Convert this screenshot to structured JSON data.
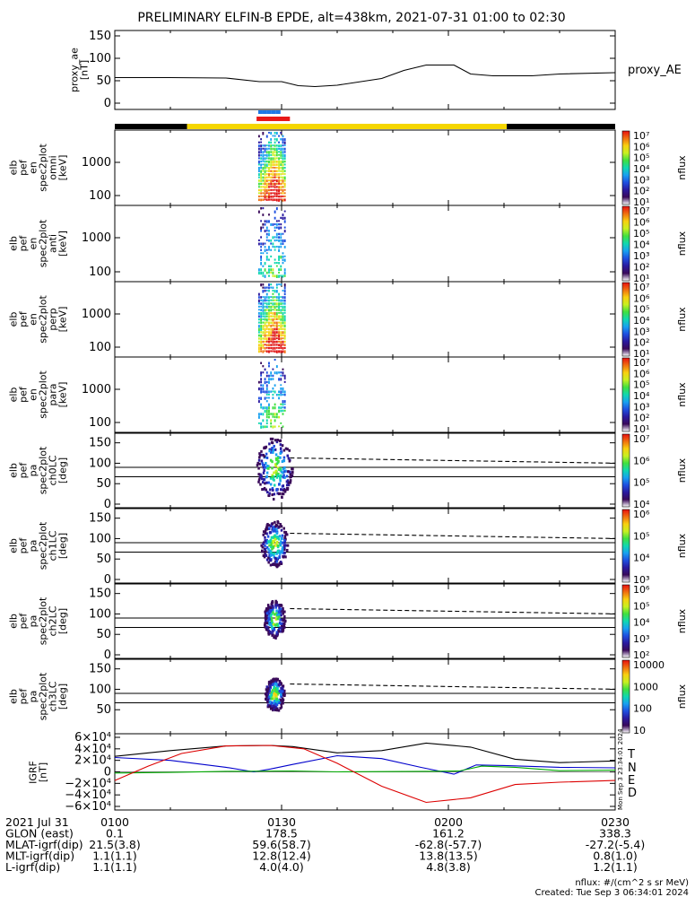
{
  "title": "PRELIMINARY ELFIN-B EPDE, alt=438km, 2021-07-31 01:00 to 02:30",
  "colors": {
    "black": "#000000",
    "yellow": "#f5d600",
    "blue_bar": "#1e78e6",
    "red_bar": "#e81818",
    "n_comp": "#0000cc",
    "e_comp": "#00aa00",
    "d_comp": "#dd0000"
  },
  "chart_data": [
    {
      "type": "line",
      "panel": "proxy_ae",
      "ylabel": [
        "proxy_ae",
        "[nT]"
      ],
      "ylim": [
        0,
        150
      ],
      "yticks": [
        "0",
        "50",
        "100",
        "150"
      ],
      "legend": "proxy_AE",
      "x_minutes": [
        0,
        10,
        20,
        26,
        30,
        33,
        36,
        40,
        48,
        52,
        56,
        61,
        64,
        68,
        75,
        80,
        90
      ],
      "values": [
        57,
        57,
        56,
        48,
        48,
        39,
        37,
        40,
        55,
        73,
        85,
        85,
        65,
        61,
        61,
        65,
        68
      ]
    },
    {
      "type": "heatmap",
      "panel": "en_omni",
      "ylabel": [
        "elb",
        "pef",
        "en",
        "spec2plot",
        "omni",
        "[keV]"
      ],
      "yticks": [
        "100",
        "1000"
      ],
      "yscale": "log",
      "colorbar": {
        "ticks": [
          "10⁷",
          "10⁶",
          "10⁵",
          "10⁴",
          "10³",
          "10²",
          "10¹"
        ],
        "label": "nflux"
      },
      "burst": {
        "start": "01:25",
        "end": "01:31"
      }
    },
    {
      "type": "heatmap",
      "panel": "en_anti",
      "ylabel": [
        "elb",
        "pef",
        "en",
        "spec2plot",
        "anti",
        "[keV]"
      ],
      "yticks": [
        "100",
        "1000"
      ],
      "yscale": "log",
      "colorbar": {
        "ticks": [
          "10⁷",
          "10⁶",
          "10⁵",
          "10⁴",
          "10³",
          "10²",
          "10¹"
        ],
        "label": "nflux"
      }
    },
    {
      "type": "heatmap",
      "panel": "en_perp",
      "ylabel": [
        "elb",
        "pef",
        "en",
        "spec2plot",
        "perp",
        "[keV]"
      ],
      "yticks": [
        "100",
        "1000"
      ],
      "yscale": "log",
      "colorbar": {
        "ticks": [
          "10⁷",
          "10⁶",
          "10⁵",
          "10⁴",
          "10³",
          "10²",
          "10¹"
        ],
        "label": "nflux"
      }
    },
    {
      "type": "heatmap",
      "panel": "en_para",
      "ylabel": [
        "elb",
        "pef",
        "en",
        "spec2plot",
        "para",
        "[keV]"
      ],
      "yticks": [
        "100",
        "1000"
      ],
      "yscale": "log",
      "colorbar": {
        "ticks": [
          "10⁷",
          "10⁶",
          "10⁵",
          "10⁴",
          "10³",
          "10²",
          "10¹"
        ],
        "label": "nflux"
      }
    },
    {
      "type": "heatmap",
      "panel": "pa_ch0",
      "ylabel": [
        "elb",
        "pef",
        "pa",
        "spec2plot",
        "ch0LC",
        "[deg]"
      ],
      "ylim": [
        0,
        180
      ],
      "yticks": [
        "0",
        "50",
        "100",
        "150"
      ],
      "colorbar": {
        "ticks": [
          "10⁷",
          "10⁶",
          "10⁵",
          "10⁴"
        ],
        "label": "nflux"
      }
    },
    {
      "type": "heatmap",
      "panel": "pa_ch1",
      "ylabel": [
        "elb",
        "pef",
        "pa",
        "spec2plot",
        "ch1LC",
        "[deg]"
      ],
      "ylim": [
        0,
        180
      ],
      "yticks": [
        "0",
        "50",
        "100",
        "150"
      ],
      "colorbar": {
        "ticks": [
          "10⁶",
          "10⁵",
          "10⁴",
          "10³"
        ],
        "label": "nflux"
      }
    },
    {
      "type": "heatmap",
      "panel": "pa_ch2",
      "ylabel": [
        "elb",
        "pef",
        "pa",
        "spec2plot",
        "ch2LC",
        "[deg]"
      ],
      "ylim": [
        0,
        180
      ],
      "yticks": [
        "0",
        "50",
        "100",
        "150"
      ],
      "colorbar": {
        "ticks": [
          "10⁶",
          "10⁵",
          "10⁴",
          "10³",
          "10²"
        ],
        "label": "nflux"
      }
    },
    {
      "type": "heatmap",
      "panel": "pa_ch3",
      "ylabel": [
        "elb",
        "pef",
        "pa",
        "spec2plot",
        "ch3LC",
        "[deg]"
      ],
      "ylim": [
        0,
        180
      ],
      "yticks": [
        "50",
        "100",
        "150"
      ],
      "colorbar": {
        "ticks": [
          "10000",
          "1000",
          "100",
          "10"
        ],
        "label": "nflux"
      }
    },
    {
      "type": "line",
      "panel": "igrf",
      "ylabel": [
        "IGRF",
        "[nT]"
      ],
      "ylim": [
        -60000,
        60000
      ],
      "yticks": [
        "6×10⁴",
        "4×10⁴",
        "2×10⁴",
        "0",
        "−2×10⁴",
        "−4×10⁴",
        "−6×10⁴"
      ],
      "series": [
        {
          "name": "T",
          "color": "#000000",
          "x_minutes": [
            0,
            10,
            20,
            28,
            32,
            40,
            48,
            56,
            64,
            72,
            80,
            90
          ],
          "values": [
            27000,
            37000,
            45000,
            46000,
            44000,
            33000,
            37000,
            50000,
            43000,
            22000,
            16000,
            19000
          ]
        },
        {
          "name": "N",
          "color": "#0000cc",
          "x_minutes": [
            0,
            10,
            20,
            25,
            28,
            32,
            40,
            48,
            55,
            61,
            65,
            70,
            80,
            90
          ],
          "values": [
            25000,
            20000,
            8000,
            0,
            5000,
            13000,
            28000,
            23000,
            8000,
            -4000,
            12000,
            11000,
            8000,
            7000
          ]
        },
        {
          "name": "E",
          "color": "#00aa00",
          "x_minutes": [
            0,
            10,
            20,
            32,
            40,
            48,
            56,
            62,
            66,
            72,
            80,
            90
          ],
          "values": [
            -2000,
            -1000,
            1000,
            1500,
            0,
            500,
            1000,
            1500,
            10000,
            8000,
            2000,
            3000
          ]
        },
        {
          "name": "D",
          "color": "#dd0000",
          "x_minutes": [
            0,
            6,
            12,
            20,
            28,
            34,
            40,
            48,
            56,
            64,
            72,
            80,
            90
          ],
          "values": [
            -15000,
            10000,
            32000,
            45000,
            46000,
            40000,
            15000,
            -25000,
            -53000,
            -45000,
            -22000,
            -18000,
            -15000
          ]
        }
      ],
      "side_stamp": "Mon Sep 3 23:34:01 2024"
    }
  ],
  "state_bar": {
    "segments": [
      {
        "start_min": 0,
        "end_min": 13,
        "color": "#000000"
      },
      {
        "start_min": 13,
        "end_min": 70.5,
        "color": "#f5d600"
      },
      {
        "start_min": 70.5,
        "end_min": 90,
        "color": "#000000"
      }
    ],
    "blue_dashes": [
      25.8,
      26.6,
      27.4,
      28.2,
      29.0
    ],
    "red_bar": {
      "start_min": 25.5,
      "end_min": 31.5
    }
  },
  "ephemeris": {
    "rows": [
      {
        "label": "2021 Jul 31",
        "values": [
          "0100",
          "0130",
          "0200",
          "0230"
        ]
      },
      {
        "label": "GLON (east)",
        "values": [
          "0.1",
          "178.5",
          "161.2",
          "338.3"
        ]
      },
      {
        "label": "MLAT-igrf(dip)",
        "values": [
          "21.5(3.8)",
          "59.6(58.7)",
          "-62.8(-57.7)",
          "-27.2(-5.4)"
        ]
      },
      {
        "label": "MLT-igrf(dip)",
        "values": [
          "1.1(1.1)",
          "12.8(12.4)",
          "13.8(13.5)",
          "0.8(1.0)"
        ]
      },
      {
        "label": "L-igrf(dip)",
        "values": [
          "1.1(1.1)",
          "4.0(4.0)",
          "4.8(3.8)",
          "1.2(1.1)"
        ]
      }
    ]
  },
  "footer": {
    "units": "nflux: #/(cm^2 s sr MeV)",
    "created": "Created: Tue Sep  3 06:34:01 2024"
  }
}
